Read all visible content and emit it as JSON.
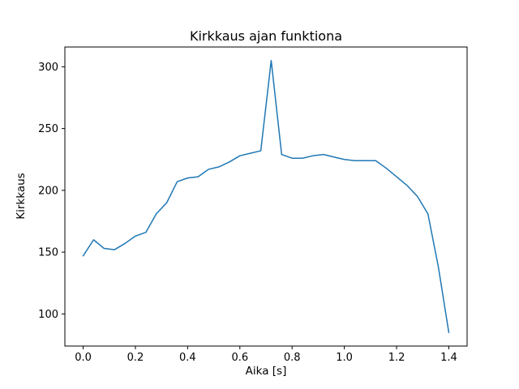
{
  "chart_data": {
    "type": "line",
    "title": "Kirkkaus ajan funktiona",
    "xlabel": "Aika [s]",
    "ylabel": "Kirkkaus",
    "line_color": "#1f77b4",
    "axis_color": "#000000",
    "background_color": "#ffffff",
    "grid": false,
    "legend": false,
    "xlim": [
      -0.07,
      1.47
    ],
    "ylim": [
      74,
      316
    ],
    "xticks": {
      "values": [
        0.0,
        0.2,
        0.4,
        0.6,
        0.8,
        1.0,
        1.2,
        1.4
      ],
      "labels": [
        "0.0",
        "0.2",
        "0.4",
        "0.6",
        "0.8",
        "1.0",
        "1.2",
        "1.4"
      ]
    },
    "yticks": {
      "values": [
        100,
        150,
        200,
        250,
        300
      ],
      "labels": [
        "100",
        "150",
        "200",
        "250",
        "300"
      ]
    },
    "series": [
      {
        "name": "kirkkaus",
        "x": [
          0.0,
          0.04,
          0.08,
          0.12,
          0.16,
          0.2,
          0.24,
          0.28,
          0.32,
          0.36,
          0.4,
          0.44,
          0.48,
          0.52,
          0.56,
          0.6,
          0.64,
          0.68,
          0.72,
          0.76,
          0.8,
          0.84,
          0.88,
          0.92,
          0.96,
          1.0,
          1.04,
          1.08,
          1.12,
          1.16,
          1.2,
          1.24,
          1.28,
          1.32,
          1.36,
          1.4
        ],
        "y": [
          147,
          160,
          153,
          152,
          157,
          163,
          166,
          181,
          190,
          207,
          210,
          211,
          217,
          219,
          223,
          228,
          230,
          232,
          305,
          229,
          226,
          226,
          228,
          229,
          227,
          225,
          224,
          224,
          224,
          218,
          211,
          204,
          195,
          181,
          138,
          85
        ]
      }
    ]
  }
}
